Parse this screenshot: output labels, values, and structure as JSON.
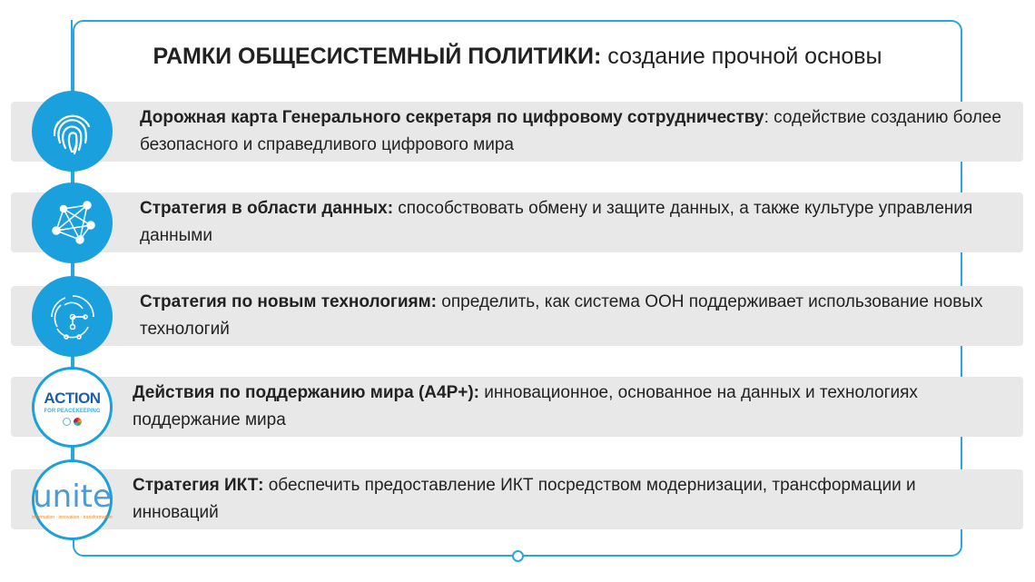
{
  "title": {
    "bold": "РАМКИ ОБЩЕСИСТЕМНЫЙ ПОЛИТИКИ:",
    "rest": " создание прочной основы"
  },
  "items": [
    {
      "icon": "fingerprint-icon",
      "bold": "Дорожная карта Генерального секретаря по цифровому сотрудничеству",
      "rest": ": содействие созданию более безопасного и справедливого цифрового мира"
    },
    {
      "icon": "network-icon",
      "bold": "Стратегия в области данных:",
      "rest": " способствовать обмену и защите данных, а также культуре управления данными"
    },
    {
      "icon": "circuit-icon",
      "bold": "Стратегия по новым технологиям:",
      "rest": " определить, как система ООН поддерживает использование новых технологий"
    },
    {
      "icon": "action-for-peacekeeping-logo",
      "logo": "ACTION",
      "logo_sub": "FOR PEACEKEEPING",
      "bold": "Действия по поддержанию мира (A4P+):",
      "rest": " инновационное, основанное на данных и технологиях поддержание мира"
    },
    {
      "icon": "unite-logo",
      "logo": "unite",
      "logo_sub": "information · innovation · transformation",
      "bold": "Стратегия ИКТ:",
      "rest": " обеспечить предоставление ИКТ посредством модернизации, трансформации и инноваций"
    }
  ],
  "colors": {
    "accent": "#1aa0dc",
    "bar": "#e8e8e9"
  }
}
